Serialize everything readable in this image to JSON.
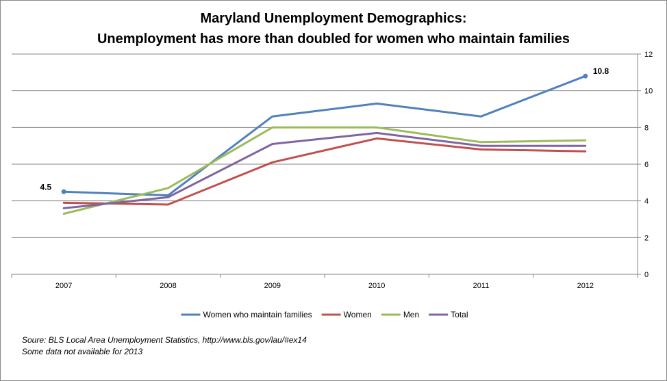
{
  "chart_data": {
    "type": "line",
    "title_line1": "Maryland Unemployment Demographics:",
    "title_line2": "Unemployment has more than doubled for women who maintain families",
    "categories": [
      "2007",
      "2008",
      "2009",
      "2010",
      "2011",
      "2012"
    ],
    "ylim": [
      0,
      12
    ],
    "y_ticks": [
      "0",
      "2",
      "4",
      "6",
      "8",
      "10",
      "12"
    ],
    "y_axis_side": "right",
    "grid": true,
    "legend_position": "bottom",
    "series": [
      {
        "name": "Women who maintain families",
        "color": "#4F81BD",
        "values": [
          4.5,
          4.3,
          8.6,
          9.3,
          8.6,
          10.8
        ]
      },
      {
        "name": "Women",
        "color": "#C0504D",
        "values": [
          3.9,
          3.8,
          6.1,
          7.4,
          6.8,
          6.7
        ]
      },
      {
        "name": "Men",
        "color": "#9BBB59",
        "values": [
          3.3,
          4.7,
          8.0,
          8.0,
          7.2,
          7.3
        ]
      },
      {
        "name": "Total",
        "color": "#8064A2",
        "values": [
          3.6,
          4.2,
          7.1,
          7.7,
          7.0,
          7.0
        ]
      }
    ],
    "annotations": [
      {
        "series": 0,
        "index": 0,
        "text": "4.5",
        "side": "left"
      },
      {
        "series": 0,
        "index": 5,
        "text": "10.8",
        "side": "right"
      }
    ]
  },
  "footer": {
    "source": "Soure: BLS Local Area Unemployment Statistics, http://www.bls.gov/lau/#ex14",
    "note": "Some data not available for 2013"
  }
}
